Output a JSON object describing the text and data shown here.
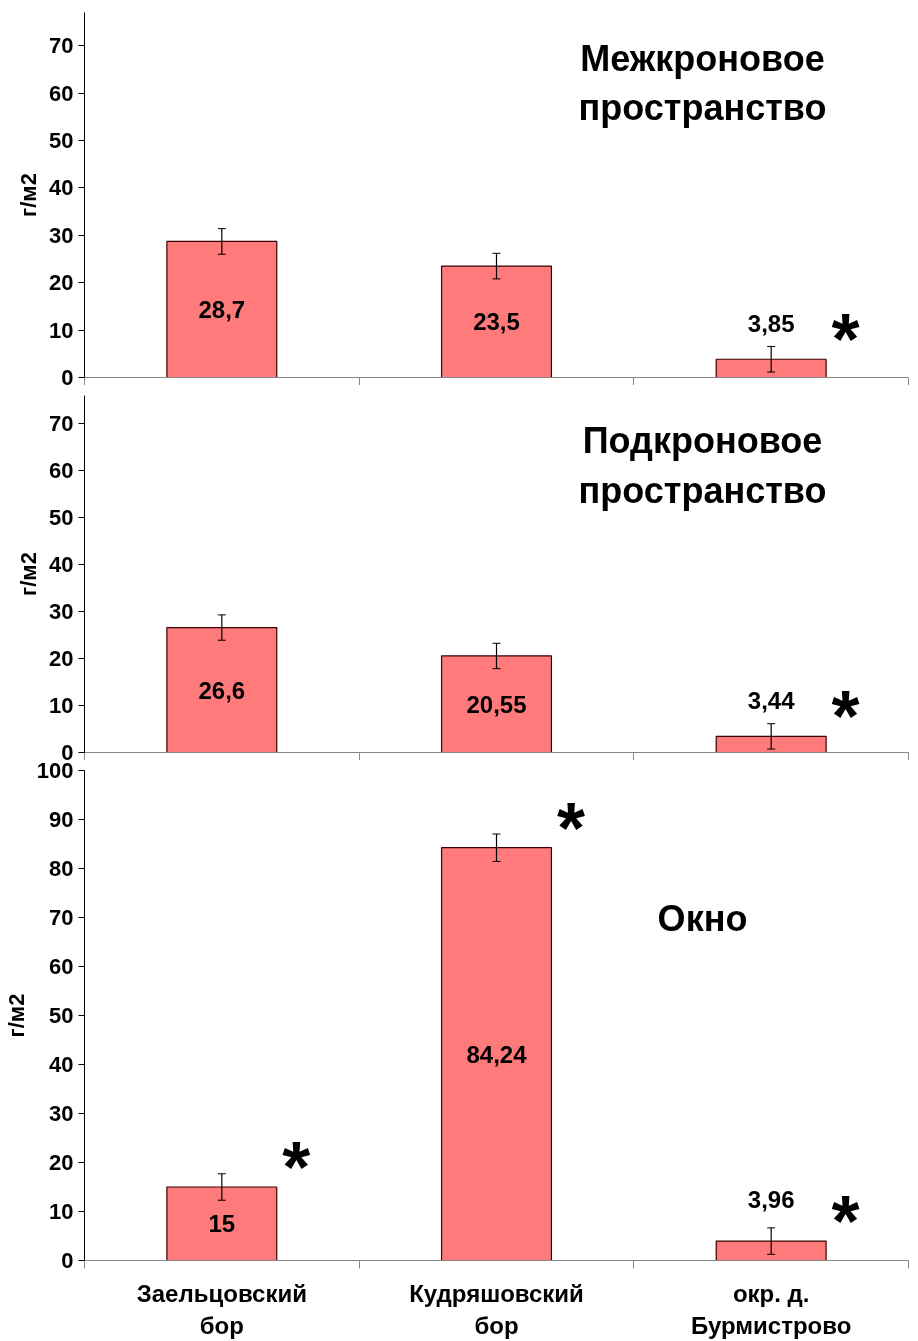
{
  "chart_data": [
    {
      "type": "bar",
      "title": "Межкроновое пространство",
      "ylabel": "г/м2",
      "categories": [
        "Заельцовский бор",
        "Кудряшовский бор",
        "окр. д. Бурмистрово"
      ],
      "values": [
        28.7,
        23.5,
        3.85
      ],
      "errors": [
        2.7,
        2.7,
        2.7
      ],
      "value_labels": [
        "28,7",
        "23,5",
        "3,85"
      ],
      "color": "#ff7b7b",
      "ylim": [
        0,
        77
      ],
      "yticks": [
        0,
        10,
        20,
        30,
        40,
        50,
        60,
        70
      ],
      "tick_labels": "y",
      "annotations": [
        {
          "text": "*",
          "x": "окр. д. Бурмистрово",
          "y": 3.85
        }
      ]
    },
    {
      "type": "bar",
      "title": "Подкроновое пространство",
      "ylabel": "г/м2",
      "categories": [
        "Заельцовский бор",
        "Кудряшовский бор",
        "окр. д. Бурмистрово"
      ],
      "values": [
        26.6,
        20.55,
        3.44
      ],
      "errors": [
        2.7,
        2.7,
        2.7
      ],
      "value_labels": [
        "26,6",
        "20,55",
        "3,44"
      ],
      "color": "#ff7b7b",
      "ylim": [
        0,
        76
      ],
      "yticks": [
        0,
        10,
        20,
        30,
        40,
        50,
        60,
        70
      ],
      "tick_labels": "y",
      "annotations": [
        {
          "text": "*",
          "x": "окр. д. Бурмистрово",
          "y": 3.44
        }
      ]
    },
    {
      "type": "bar",
      "title": "Окно",
      "ylabel": "г/м2",
      "categories": [
        "Заельцовский бор",
        "Кудряшовский бор",
        "окр. д. Бурмистрово"
      ],
      "values": [
        15,
        84.24,
        3.96
      ],
      "errors": [
        2.7,
        2.8,
        2.7
      ],
      "value_labels": [
        "15",
        "84,24",
        "3,96"
      ],
      "color": "#ff7b7b",
      "ylim": [
        0,
        100
      ],
      "yticks": [
        0,
        10,
        20,
        30,
        40,
        50,
        60,
        70,
        80,
        90,
        100
      ],
      "annotations": [
        {
          "text": "*",
          "x": "Заельцовский бор",
          "y": 15
        },
        {
          "text": "*",
          "x": "Кудряшовский бор",
          "y": 84.24
        },
        {
          "text": "*",
          "x": "окр. д. Бурмистрово",
          "y": 3.96
        }
      ]
    }
  ]
}
